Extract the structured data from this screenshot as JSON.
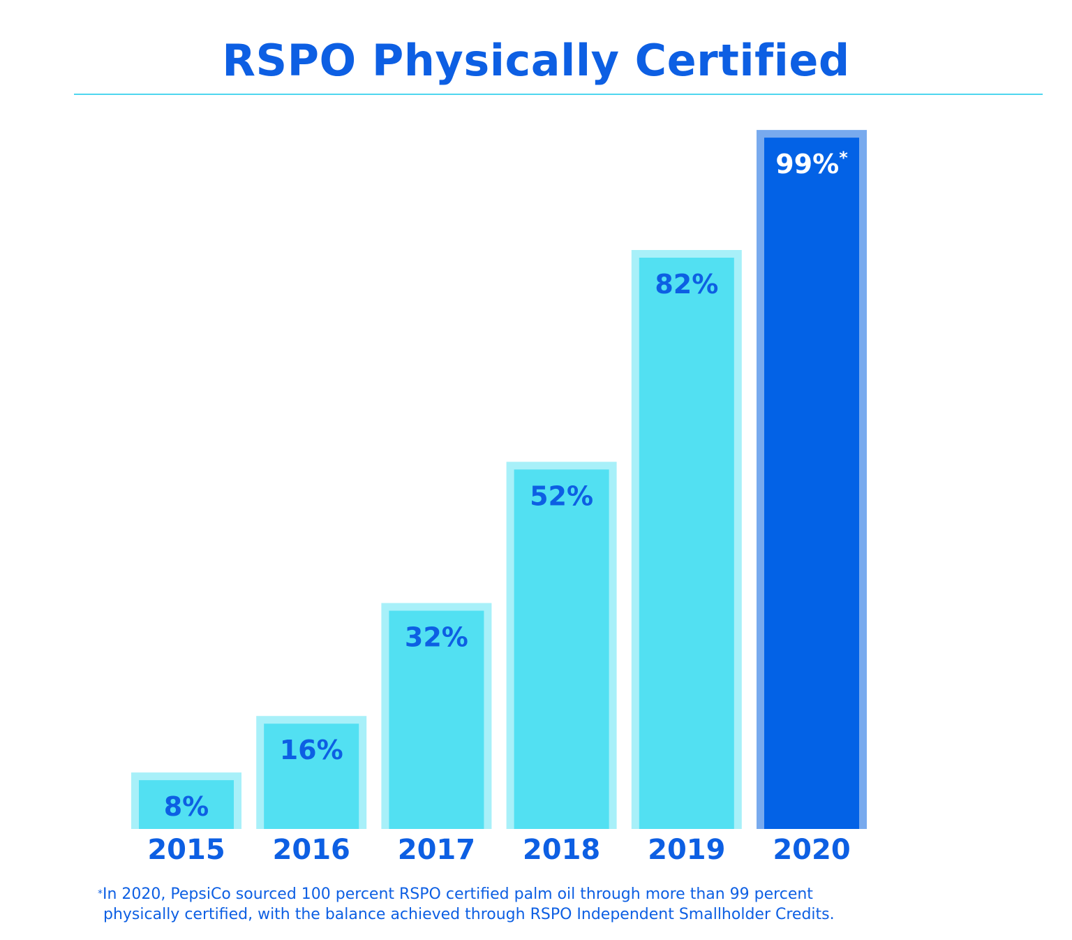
{
  "chart_data": {
    "type": "bar",
    "title": "RSPO Physically Certified",
    "xlabel": "",
    "ylabel": "",
    "ylim": [
      0,
      100
    ],
    "categories": [
      "2015",
      "2016",
      "2017",
      "2018",
      "2019",
      "2020"
    ],
    "values": [
      8,
      16,
      32,
      52,
      82,
      99
    ],
    "data_labels": [
      "8%",
      "16%",
      "32%",
      "52%",
      "82%",
      "99%"
    ],
    "label_suffix": [
      "",
      "",
      "",
      "",
      "",
      "*"
    ],
    "highlight_index": 5,
    "grid": false,
    "colors": {
      "bar": "#52e0f2",
      "bar_border": "#a8f0f9",
      "highlight_bar": "#0362e6",
      "highlight_border": "#78aaee",
      "label": "#0d5fe3",
      "highlight_label": "#ffffff",
      "title": "#0d5fe3",
      "rule": "#4fd6ef"
    }
  },
  "footnote": {
    "marker": "*",
    "line1": "In 2020, PepsiCo sourced 100 percent RSPO certified palm oil through more than 99 percent",
    "line2": "physically certified, with the balance achieved through RSPO Independent Smallholder Credits."
  }
}
